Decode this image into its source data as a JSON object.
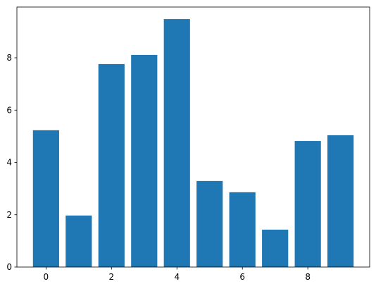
{
  "chart_data": {
    "type": "bar",
    "x": [
      0,
      1,
      2,
      3,
      4,
      5,
      6,
      7,
      8,
      9
    ],
    "values": [
      5.23,
      1.97,
      7.76,
      8.11,
      9.48,
      3.29,
      2.86,
      1.43,
      4.82,
      5.04
    ],
    "color": "#1f77b4",
    "xlim": [
      -0.89,
      9.89
    ],
    "xticks": [
      0,
      2,
      4,
      6,
      8
    ],
    "ylim": [
      0,
      9.94
    ],
    "yticks": [
      0,
      2,
      4,
      6,
      8
    ],
    "grid": false
  }
}
